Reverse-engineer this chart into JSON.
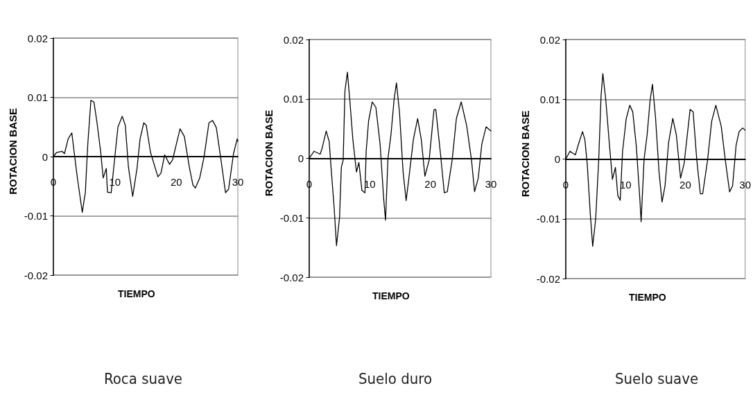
{
  "chart_data": [
    {
      "type": "line",
      "xlabel": "TIEMPO",
      "ylabel": "ROTACION BASE",
      "annotations": [
        "Roca suave"
      ],
      "xlim": [
        0,
        30
      ],
      "xticks": [
        0,
        10,
        20,
        30
      ],
      "ylim": [
        -0.02,
        0.02
      ],
      "yticks": [
        -0.02,
        -0.01,
        0,
        0.01,
        0.02
      ],
      "grid": "y",
      "marker": "none",
      "line_style": "solid",
      "series": [
        {
          "color": "#000000",
          "x": [
            0,
            0.5,
            1.4,
            1.8,
            2.4,
            3.0,
            3.3,
            3.9,
            4.7,
            5.2,
            5.6,
            6.1,
            6.6,
            7.1,
            7.7,
            8.1,
            8.6,
            8.8,
            9.4,
            10.0,
            10.5,
            11.2,
            11.7,
            12.2,
            12.9,
            13.6,
            14.1,
            14.7,
            15.1,
            15.8,
            17.0,
            17.5,
            18.1,
            18.9,
            19.4,
            20.6,
            21.3,
            22.1,
            22.7,
            23.1,
            23.8,
            24.5,
            25.3,
            25.9,
            26.5,
            27.2,
            28.0,
            28.5,
            29.3,
            29.9,
            30
          ],
          "values": [
            0,
            0.0007,
            0.0009,
            0.0005,
            0.003,
            0.004,
            0.0014,
            -0.0036,
            -0.0094,
            -0.006,
            0.0022,
            0.0095,
            0.0092,
            0.0057,
            0.0007,
            -0.0036,
            -0.002,
            -0.006,
            -0.0061,
            0,
            0.005,
            0.0068,
            0.0053,
            -0.0017,
            -0.0067,
            -0.002,
            0.003,
            0.0057,
            0.0053,
            0.0007,
            -0.0034,
            -0.0028,
            0.0003,
            -0.0013,
            -0.0005,
            0.0047,
            0.0034,
            -0.0017,
            -0.0048,
            -0.0053,
            -0.0036,
            -0.0001,
            0.0057,
            0.0061,
            0.0049,
            -0.0001,
            -0.0061,
            -0.0055,
            0.0005,
            0.003,
            0.0026
          ]
        }
      ]
    },
    {
      "type": "line",
      "xlabel": "TIEMPO",
      "ylabel": "ROTACION BASE",
      "annotations": [
        "Suelo duro"
      ],
      "xlim": [
        0,
        30
      ],
      "xticks": [
        0,
        10,
        20,
        30
      ],
      "ylim": [
        -0.02,
        0.02
      ],
      "yticks": [
        -0.02,
        -0.01,
        0,
        0.01,
        0.02
      ],
      "grid": "y",
      "marker": "none",
      "line_style": "solid",
      "series": [
        {
          "color": "#000000",
          "x": [
            0,
            0.8,
            1.8,
            2.1,
            2.8,
            3.3,
            3.6,
            4.1,
            4.5,
            5.0,
            5.3,
            5.6,
            5.9,
            6.3,
            6.7,
            7.2,
            7.8,
            8.2,
            8.7,
            9.2,
            9.4,
            9.8,
            10.4,
            11.0,
            11.7,
            12.3,
            12.6,
            13.0,
            13.5,
            14.0,
            14.4,
            14.9,
            15.5,
            16.0,
            16.4,
            17.2,
            17.9,
            18.5,
            19.1,
            19.8,
            20.6,
            20.9,
            21.7,
            22.3,
            22.8,
            23.6,
            24.3,
            25.1,
            26.0,
            26.8,
            27.3,
            27.9,
            28.5,
            29.2,
            30
          ],
          "values": [
            0,
            0.0012,
            0.0007,
            0.0016,
            0.0046,
            0.0028,
            -0.0015,
            -0.0081,
            -0.0147,
            -0.01,
            -0.0015,
            -0.0003,
            0.0114,
            0.0145,
            0.0098,
            0.0032,
            -0.0023,
            -0.0007,
            -0.0054,
            -0.0058,
            0.0012,
            0.0063,
            0.0095,
            0.0086,
            0.0024,
            -0.0069,
            -0.0104,
            0,
            0.004,
            0.0098,
            0.0127,
            0.0078,
            -0.0023,
            -0.0071,
            -0.0038,
            0.0032,
            0.0067,
            0.0032,
            -0.003,
            -0.0003,
            0.0082,
            0.0082,
            0.0005,
            -0.0058,
            -0.0056,
            -0.0003,
            0.0067,
            0.0095,
            0.0055,
            -0.0003,
            -0.0056,
            -0.0034,
            0.0024,
            0.0053,
            0.0046
          ]
        }
      ]
    },
    {
      "type": "line",
      "xlabel": "TIEMPO",
      "ylabel": "ROTACION BASE",
      "annotations": [
        "Suelo suave"
      ],
      "xlim": [
        0,
        30
      ],
      "xticks": [
        0,
        10,
        20,
        30
      ],
      "ylim": [
        -0.02,
        0.02
      ],
      "yticks": [
        -0.02,
        -0.01,
        0,
        0.01,
        0.02
      ],
      "grid": "y",
      "marker": "none",
      "line_style": "solid",
      "series": [
        {
          "color": "#000000",
          "x": [
            0,
            0.7,
            1.6,
            2.1,
            2.8,
            3.2,
            3.6,
            4.1,
            4.5,
            5.0,
            5.5,
            5.9,
            6.2,
            6.7,
            7.3,
            7.8,
            8.3,
            8.7,
            9.1,
            9.5,
            10.1,
            10.7,
            11.2,
            11.8,
            12.4,
            12.6,
            13.1,
            13.6,
            14.1,
            14.5,
            15.0,
            15.6,
            16.1,
            16.6,
            17.2,
            17.9,
            18.5,
            19.2,
            19.8,
            20.8,
            21.3,
            21.9,
            22.5,
            22.9,
            23.7,
            24.4,
            25.1,
            26.0,
            26.7,
            27.4,
            27.9,
            28.5,
            29.0,
            29.6,
            30
          ],
          "values": [
            0,
            0.0013,
            0.0007,
            0.0024,
            0.0046,
            0.0032,
            -0.001,
            -0.0092,
            -0.0146,
            -0.01,
            -0.0003,
            0.0106,
            0.0143,
            0.0098,
            0.0024,
            -0.0034,
            -0.0014,
            -0.0061,
            -0.0069,
            0.0013,
            0.0067,
            0.009,
            0.0079,
            0.0021,
            -0.0069,
            -0.0105,
            0,
            0.004,
            0.0098,
            0.0125,
            0.0071,
            -0.0022,
            -0.0072,
            -0.0045,
            0.0028,
            0.0068,
            0.004,
            -0.0032,
            -0.0007,
            0.0083,
            0.0079,
            0,
            -0.0058,
            -0.0058,
            -0.0003,
            0.0063,
            0.009,
            0.0055,
            -0.0003,
            -0.0055,
            -0.0045,
            0.0024,
            0.0046,
            0.0052,
            0.0048
          ]
        }
      ]
    }
  ]
}
